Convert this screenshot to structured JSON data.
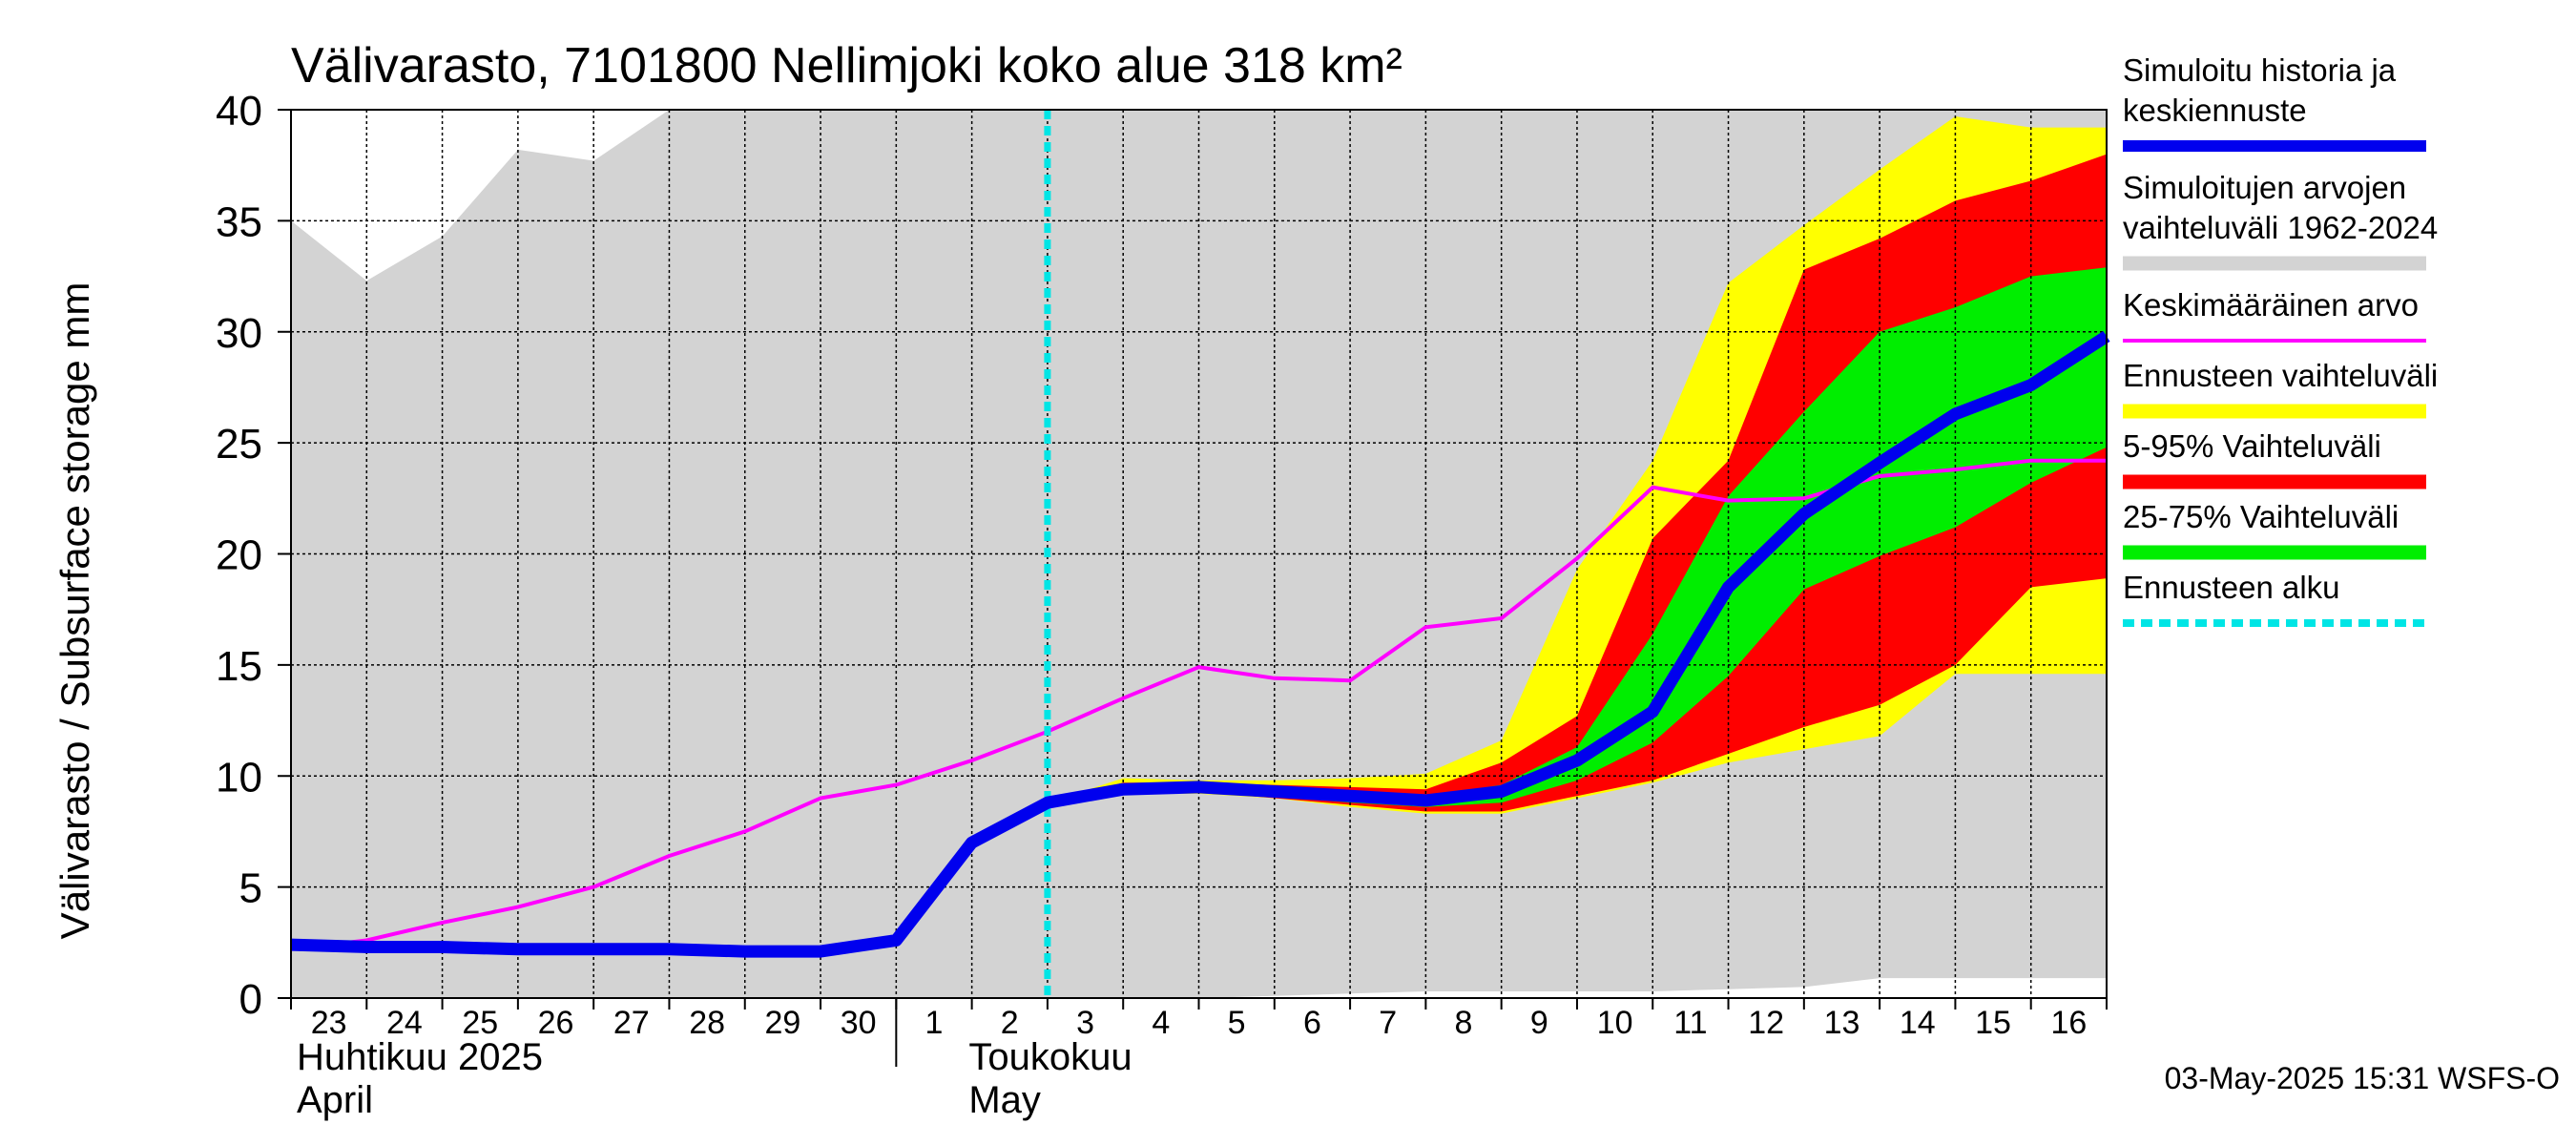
{
  "chart_data": {
    "type": "area",
    "title": "Välivarasto, 7101800 Nellimjoki koko alue 318 km²",
    "ylabel": "Välivarasto / Subsurface storage  mm",
    "ylim": [
      0,
      40
    ],
    "yticks": [
      0,
      5,
      10,
      15,
      20,
      25,
      30,
      35,
      40
    ],
    "grid": true,
    "legend_position": "right",
    "x_dates": [
      "2025-04-23",
      "2025-04-24",
      "2025-04-25",
      "2025-04-26",
      "2025-04-27",
      "2025-04-28",
      "2025-04-29",
      "2025-04-30",
      "2025-05-01",
      "2025-05-02",
      "2025-05-03",
      "2025-05-04",
      "2025-05-05",
      "2025-05-06",
      "2025-05-07",
      "2025-05-08",
      "2025-05-09",
      "2025-05-10",
      "2025-05-11",
      "2025-05-12",
      "2025-05-13",
      "2025-05-14",
      "2025-05-15",
      "2025-05-16",
      "2025-05-17"
    ],
    "x_tick_labels": [
      "23",
      "24",
      "25",
      "26",
      "27",
      "28",
      "29",
      "30",
      "1",
      "2",
      "3",
      "4",
      "5",
      "6",
      "7",
      "8",
      "9",
      "10",
      "11",
      "12",
      "13",
      "14",
      "15",
      "16"
    ],
    "month_labels": [
      {
        "fi": "Huhtikuu  2025",
        "en": "April"
      },
      {
        "fi": "Toukokuu",
        "en": "May"
      }
    ],
    "forecast_start": "2025-05-03",
    "series": [
      {
        "name": "Simuloitujen arvojen vaihteluväli 1962-2024",
        "color": "#d3d3d3",
        "upper": [
          35,
          32.3,
          34.3,
          38.2,
          37.7,
          40,
          40,
          40,
          40,
          40,
          40,
          40,
          40,
          40,
          40,
          40,
          40,
          40,
          40,
          40,
          40,
          40,
          40,
          40,
          40
        ],
        "lower": [
          0,
          0,
          0,
          0,
          0,
          0,
          0,
          0,
          0,
          0,
          0,
          0,
          0,
          0.1,
          0.2,
          0.3,
          0.3,
          0.3,
          0.3,
          0.4,
          0.5,
          0.9,
          0.9,
          0.9,
          0.9
        ]
      },
      {
        "name": "Ennusteen vaihteluväli",
        "color": "#ffff00",
        "upper": [
          null,
          null,
          null,
          null,
          null,
          null,
          null,
          null,
          null,
          null,
          8.8,
          9.9,
          9.8,
          9.8,
          9.9,
          10.1,
          11.6,
          19.3,
          24.2,
          32.2,
          34.8,
          37.3,
          39.7,
          39.2,
          39.2
        ],
        "lower": [
          null,
          null,
          null,
          null,
          null,
          null,
          null,
          null,
          null,
          null,
          8.8,
          9.2,
          9.2,
          9.0,
          8.6,
          8.3,
          8.3,
          9.0,
          9.7,
          10.6,
          11.2,
          11.8,
          14.6,
          14.6,
          14.6
        ]
      },
      {
        "name": "5-95% Vaihteluväli",
        "color": "#ff0000",
        "upper": [
          null,
          null,
          null,
          null,
          null,
          null,
          null,
          null,
          null,
          null,
          8.8,
          9.7,
          9.7,
          9.6,
          9.5,
          9.4,
          10.6,
          12.7,
          20.7,
          24.2,
          32.8,
          34.2,
          35.9,
          36.8,
          38
        ],
        "lower": [
          null,
          null,
          null,
          null,
          null,
          null,
          null,
          null,
          null,
          null,
          8.8,
          9.3,
          9.3,
          9.0,
          8.7,
          8.4,
          8.4,
          9.1,
          9.8,
          11.0,
          12.2,
          13.2,
          15.0,
          18.5,
          18.9
        ]
      },
      {
        "name": "25-75% Vaihteluväli",
        "color": "#00ee00",
        "upper": [
          null,
          null,
          null,
          null,
          null,
          null,
          null,
          null,
          null,
          null,
          8.8,
          9.6,
          9.6,
          9.5,
          9.3,
          9.1,
          9.6,
          11.3,
          16.4,
          22.6,
          26.4,
          30.0,
          31.1,
          32.5,
          32.9
        ],
        "lower": [
          null,
          null,
          null,
          null,
          null,
          null,
          null,
          null,
          null,
          null,
          8.8,
          9.4,
          9.4,
          9.1,
          8.8,
          8.6,
          8.8,
          9.8,
          11.5,
          14.5,
          18.4,
          19.9,
          21.2,
          23.2,
          24.8
        ]
      },
      {
        "name": "Keskimääräinen arvo",
        "color": "#ff00ff",
        "values": [
          2.2,
          2.6,
          3.4,
          4.1,
          5.0,
          6.4,
          7.5,
          9.0,
          9.6,
          10.7,
          12.0,
          13.5,
          14.9,
          14.4,
          14.3,
          16.7,
          17.1,
          19.8,
          23.0,
          22.4,
          22.5,
          23.5,
          23.8,
          24.2,
          24.2
        ]
      },
      {
        "name": "Simuloitu historia ja keskiennuste",
        "color": "#0000ee",
        "values": [
          2.4,
          2.3,
          2.3,
          2.2,
          2.2,
          2.2,
          2.1,
          2.1,
          2.6,
          7.0,
          8.8,
          9.4,
          9.5,
          9.3,
          9.1,
          8.9,
          9.3,
          10.7,
          12.9,
          18.5,
          21.8,
          24.1,
          26.3,
          27.6,
          29.8
        ]
      }
    ],
    "legend": [
      {
        "lines": [
          "Simuloitu historia ja",
          "keskiennuste"
        ],
        "color": "#0000ee",
        "style": "thick"
      },
      {
        "lines": [
          "Simuloitujen arvojen",
          "vaihteluväli 1962-2024"
        ],
        "color": "#d3d3d3",
        "style": "band"
      },
      {
        "lines": [
          "Keskimääräinen arvo"
        ],
        "color": "#ff00ff",
        "style": "thin"
      },
      {
        "lines": [
          "Ennusteen vaihteluväli"
        ],
        "color": "#ffff00",
        "style": "band"
      },
      {
        "lines": [
          "5-95% Vaihteluväli"
        ],
        "color": "#ff0000",
        "style": "band"
      },
      {
        "lines": [
          "25-75% Vaihteluväli"
        ],
        "color": "#00ee00",
        "style": "band"
      },
      {
        "lines": [
          "Ennusteen alku"
        ],
        "color": "#00e5e5",
        "style": "dashed"
      }
    ],
    "footer": "03-May-2025 15:31 WSFS-O"
  }
}
